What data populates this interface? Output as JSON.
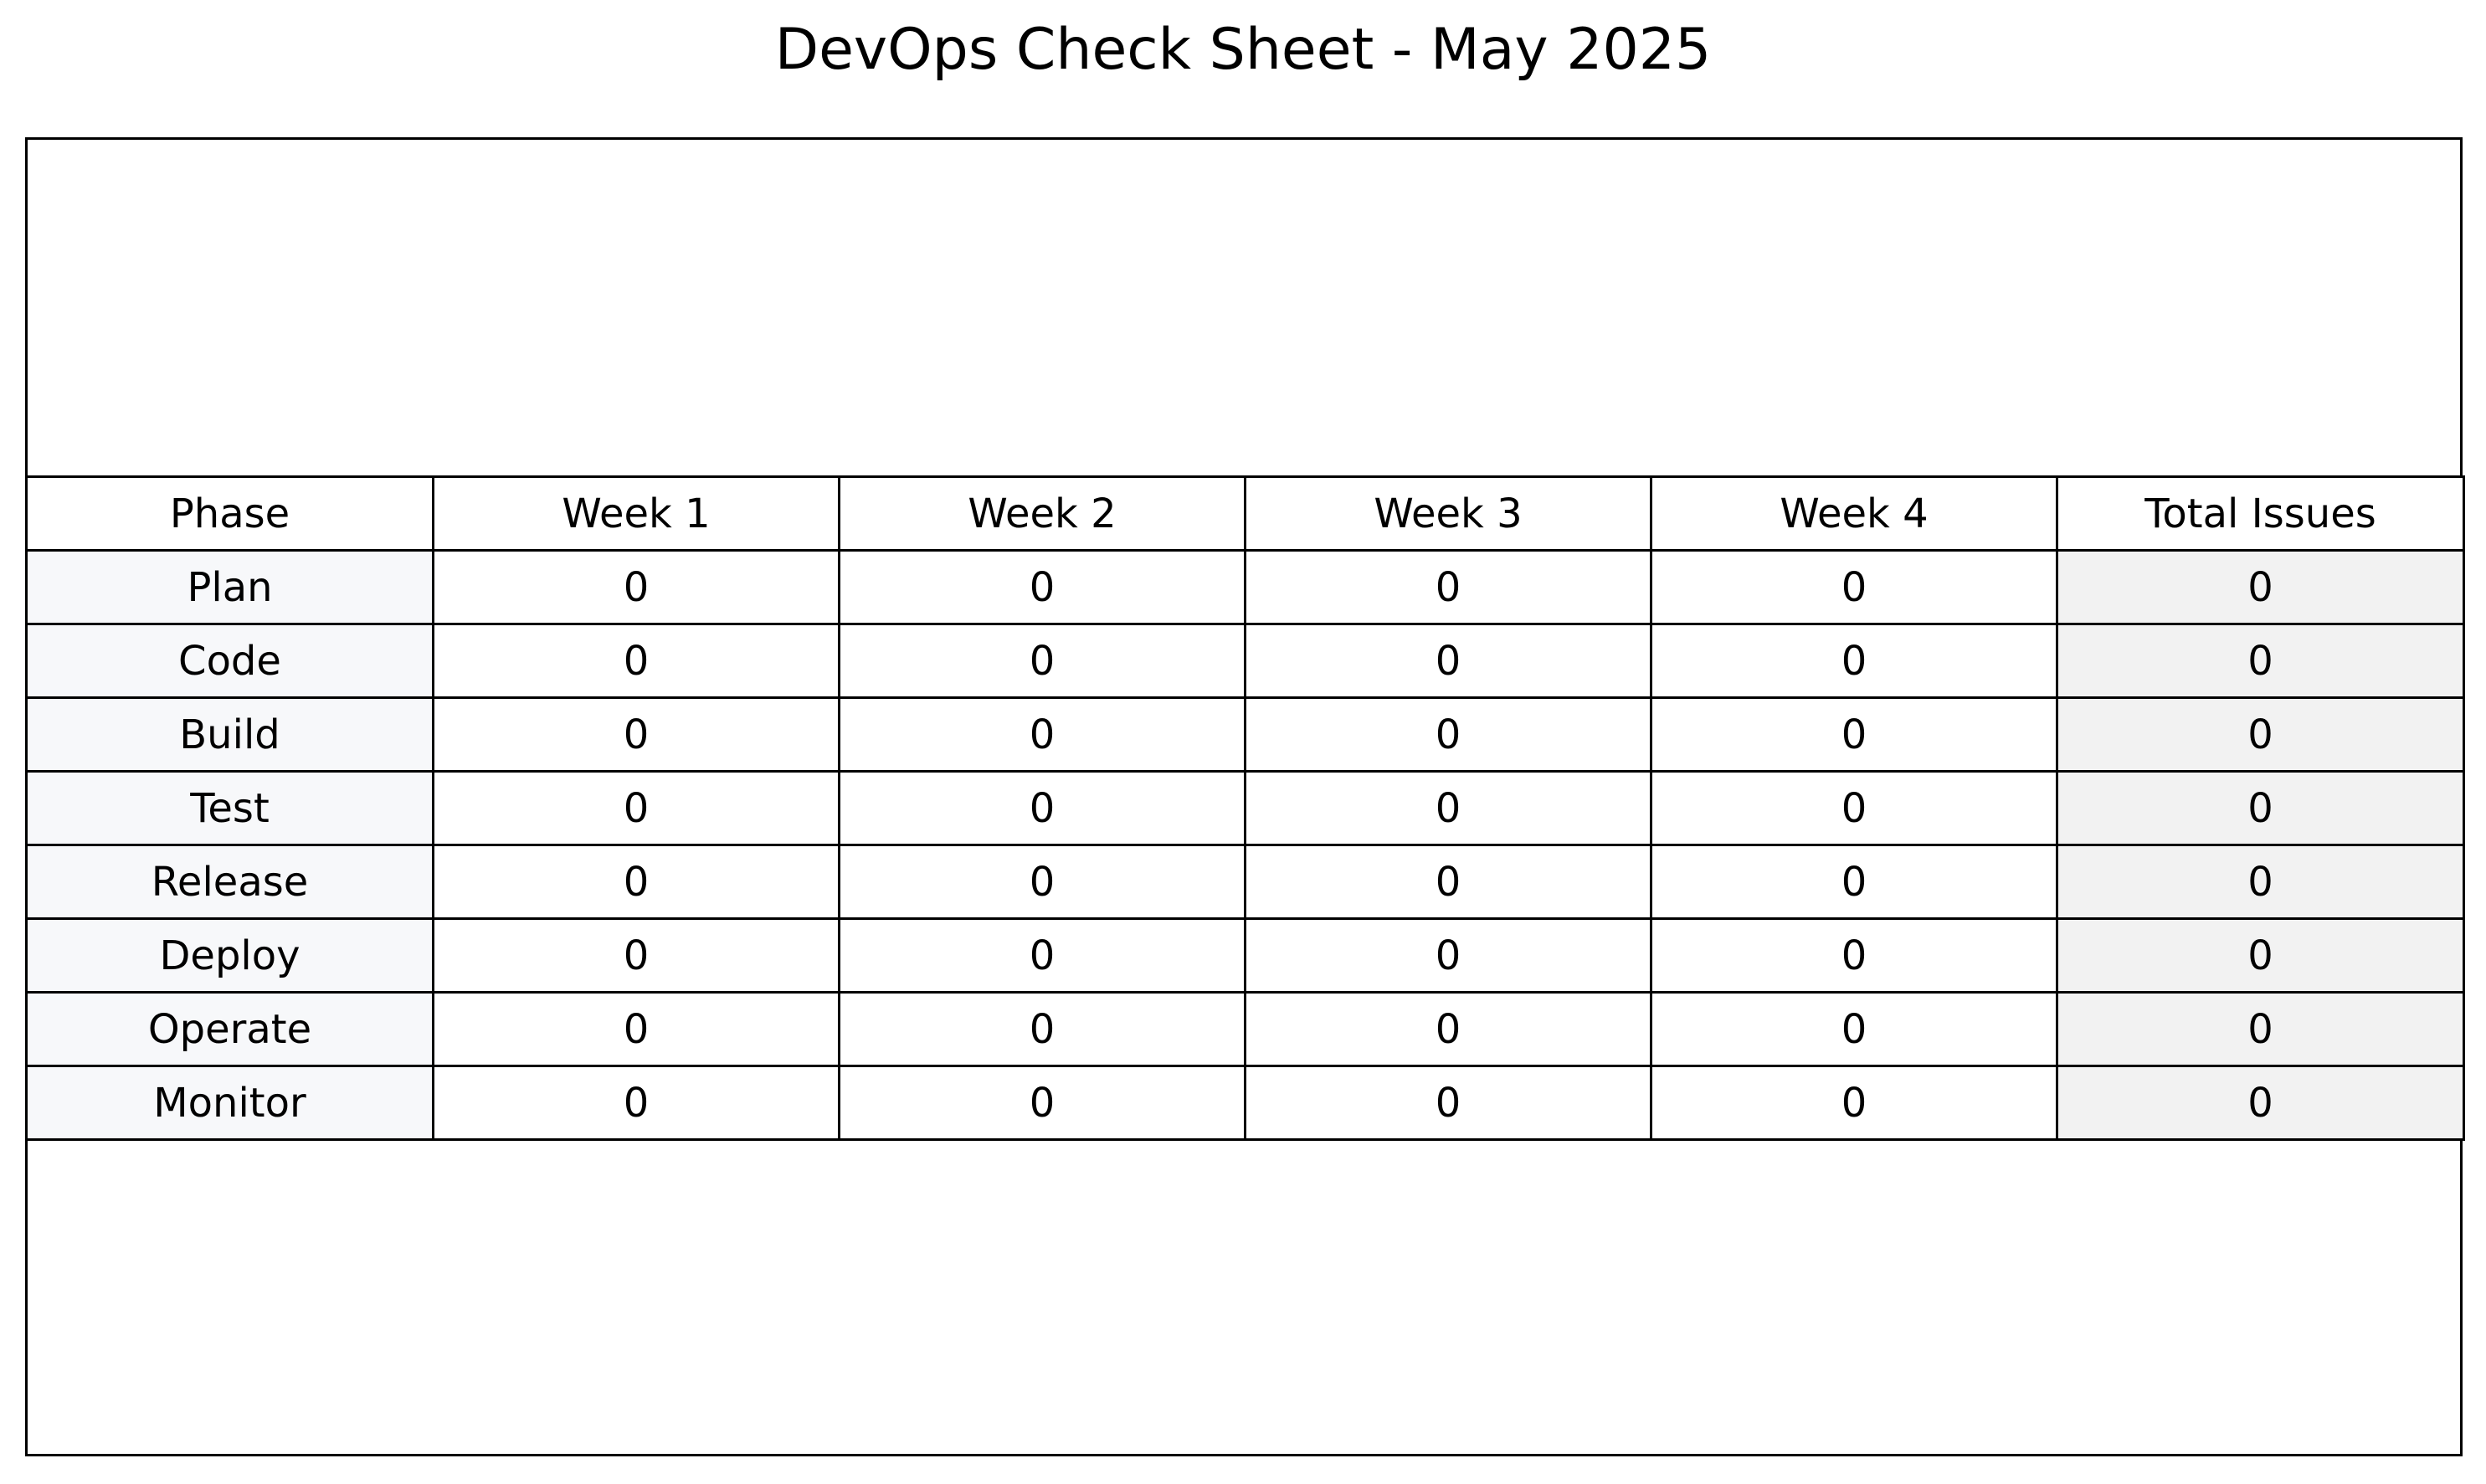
{
  "chart_data": {
    "type": "table",
    "title": "DevOps Check Sheet - May 2025",
    "columns": [
      "Phase",
      "Week 1",
      "Week 2",
      "Week 3",
      "Week 4",
      "Total Issues"
    ],
    "rows": [
      {
        "phase": "Plan",
        "values": [
          0,
          0,
          0,
          0
        ],
        "total": 0
      },
      {
        "phase": "Code",
        "values": [
          0,
          0,
          0,
          0
        ],
        "total": 0
      },
      {
        "phase": "Build",
        "values": [
          0,
          0,
          0,
          0
        ],
        "total": 0
      },
      {
        "phase": "Test",
        "values": [
          0,
          0,
          0,
          0
        ],
        "total": 0
      },
      {
        "phase": "Release",
        "values": [
          0,
          0,
          0,
          0
        ],
        "total": 0
      },
      {
        "phase": "Deploy",
        "values": [
          0,
          0,
          0,
          0
        ],
        "total": 0
      },
      {
        "phase": "Operate",
        "values": [
          0,
          0,
          0,
          0
        ],
        "total": 0
      },
      {
        "phase": "Monitor",
        "values": [
          0,
          0,
          0,
          0
        ],
        "total": 0
      }
    ]
  },
  "colors": {
    "phase_cell_bg": "#f7f8fa",
    "total_cell_bg": "#f2f2f2",
    "border": "#000000"
  }
}
